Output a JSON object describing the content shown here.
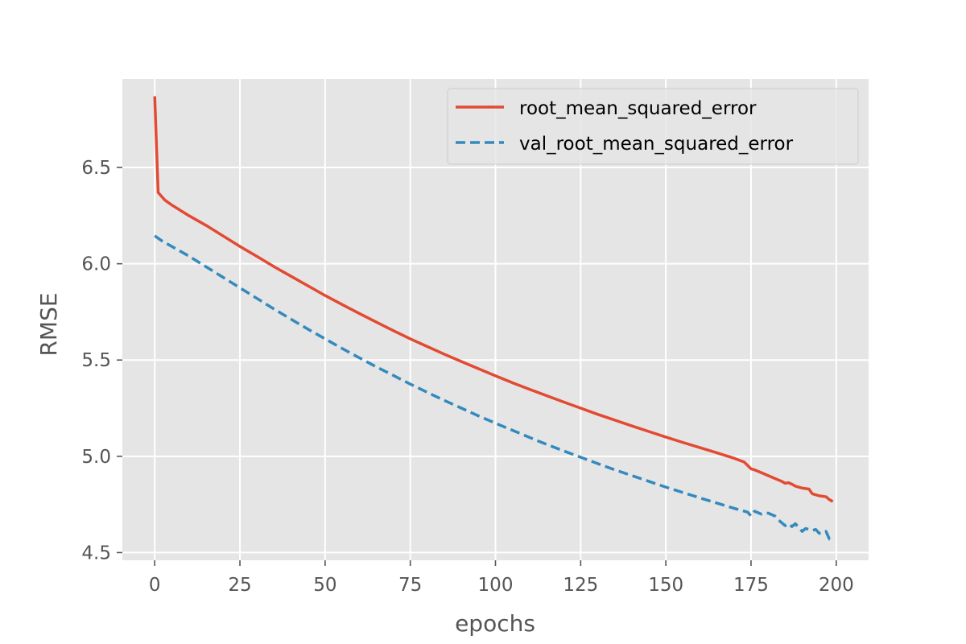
{
  "chart_data": {
    "type": "line",
    "xlabel": "epochs",
    "ylabel": "RMSE",
    "xlim": [
      -9.5,
      209.5
    ],
    "ylim": [
      4.46,
      6.96
    ],
    "xticks": [
      0,
      25,
      50,
      75,
      100,
      125,
      150,
      175,
      200
    ],
    "yticks": [
      4.5,
      5.0,
      5.5,
      6.0,
      6.5
    ],
    "grid": true,
    "legend_position": "upper right",
    "background_color": "#e5e5e5",
    "grid_color": "#ffffff",
    "series": [
      {
        "name": "root_mean_squared_error",
        "color": "#e24a33",
        "style": "solid",
        "points": [
          [
            0,
            6.87
          ],
          [
            1,
            6.37
          ],
          [
            3,
            6.33
          ],
          [
            5,
            6.305
          ],
          [
            10,
            6.25
          ],
          [
            15,
            6.2
          ],
          [
            20,
            6.145
          ],
          [
            25,
            6.09
          ],
          [
            30,
            6.038
          ],
          [
            35,
            5.985
          ],
          [
            40,
            5.935
          ],
          [
            45,
            5.885
          ],
          [
            50,
            5.835
          ],
          [
            55,
            5.788
          ],
          [
            60,
            5.742
          ],
          [
            65,
            5.697
          ],
          [
            70,
            5.653
          ],
          [
            75,
            5.61
          ],
          [
            80,
            5.57
          ],
          [
            85,
            5.53
          ],
          [
            90,
            5.492
          ],
          [
            95,
            5.455
          ],
          [
            100,
            5.418
          ],
          [
            105,
            5.382
          ],
          [
            110,
            5.348
          ],
          [
            115,
            5.315
          ],
          [
            120,
            5.282
          ],
          [
            125,
            5.25
          ],
          [
            130,
            5.218
          ],
          [
            135,
            5.188
          ],
          [
            140,
            5.158
          ],
          [
            145,
            5.129
          ],
          [
            150,
            5.1
          ],
          [
            155,
            5.072
          ],
          [
            160,
            5.045
          ],
          [
            165,
            5.018
          ],
          [
            170,
            4.99
          ],
          [
            173,
            4.97
          ],
          [
            175,
            4.935
          ],
          [
            176,
            4.93
          ],
          [
            178,
            4.915
          ],
          [
            180,
            4.9
          ],
          [
            182,
            4.885
          ],
          [
            184,
            4.87
          ],
          [
            185,
            4.86
          ],
          [
            186,
            4.863
          ],
          [
            187,
            4.855
          ],
          [
            188,
            4.845
          ],
          [
            190,
            4.835
          ],
          [
            192,
            4.83
          ],
          [
            193,
            4.805
          ],
          [
            195,
            4.795
          ],
          [
            197,
            4.79
          ],
          [
            198,
            4.775
          ],
          [
            199,
            4.765
          ]
        ]
      },
      {
        "name": "val_root_mean_squared_error",
        "color": "#348abd",
        "style": "dashed",
        "points": [
          [
            0,
            6.145
          ],
          [
            2,
            6.12
          ],
          [
            5,
            6.09
          ],
          [
            10,
            6.04
          ],
          [
            15,
            5.985
          ],
          [
            20,
            5.93
          ],
          [
            25,
            5.875
          ],
          [
            30,
            5.82
          ],
          [
            35,
            5.765
          ],
          [
            40,
            5.712
          ],
          [
            45,
            5.66
          ],
          [
            50,
            5.61
          ],
          [
            55,
            5.56
          ],
          [
            60,
            5.512
          ],
          [
            65,
            5.465
          ],
          [
            70,
            5.42
          ],
          [
            75,
            5.375
          ],
          [
            80,
            5.332
          ],
          [
            85,
            5.29
          ],
          [
            90,
            5.25
          ],
          [
            95,
            5.21
          ],
          [
            100,
            5.172
          ],
          [
            105,
            5.135
          ],
          [
            110,
            5.098
          ],
          [
            115,
            5.062
          ],
          [
            120,
            5.028
          ],
          [
            125,
            4.995
          ],
          [
            130,
            4.962
          ],
          [
            135,
            4.93
          ],
          [
            140,
            4.9
          ],
          [
            145,
            4.87
          ],
          [
            150,
            4.84
          ],
          [
            155,
            4.812
          ],
          [
            160,
            4.784
          ],
          [
            165,
            4.757
          ],
          [
            170,
            4.73
          ],
          [
            172,
            4.72
          ],
          [
            174,
            4.71
          ],
          [
            175,
            4.69
          ],
          [
            176,
            4.715
          ],
          [
            178,
            4.7
          ],
          [
            180,
            4.705
          ],
          [
            182,
            4.69
          ],
          [
            183,
            4.67
          ],
          [
            185,
            4.64
          ],
          [
            186,
            4.65
          ],
          [
            187,
            4.635
          ],
          [
            188,
            4.65
          ],
          [
            190,
            4.61
          ],
          [
            191,
            4.625
          ],
          [
            193,
            4.615
          ],
          [
            194,
            4.62
          ],
          [
            195,
            4.6
          ],
          [
            196,
            4.6
          ],
          [
            197,
            4.61
          ],
          [
            198,
            4.57
          ],
          [
            199,
            4.57
          ]
        ]
      }
    ]
  }
}
